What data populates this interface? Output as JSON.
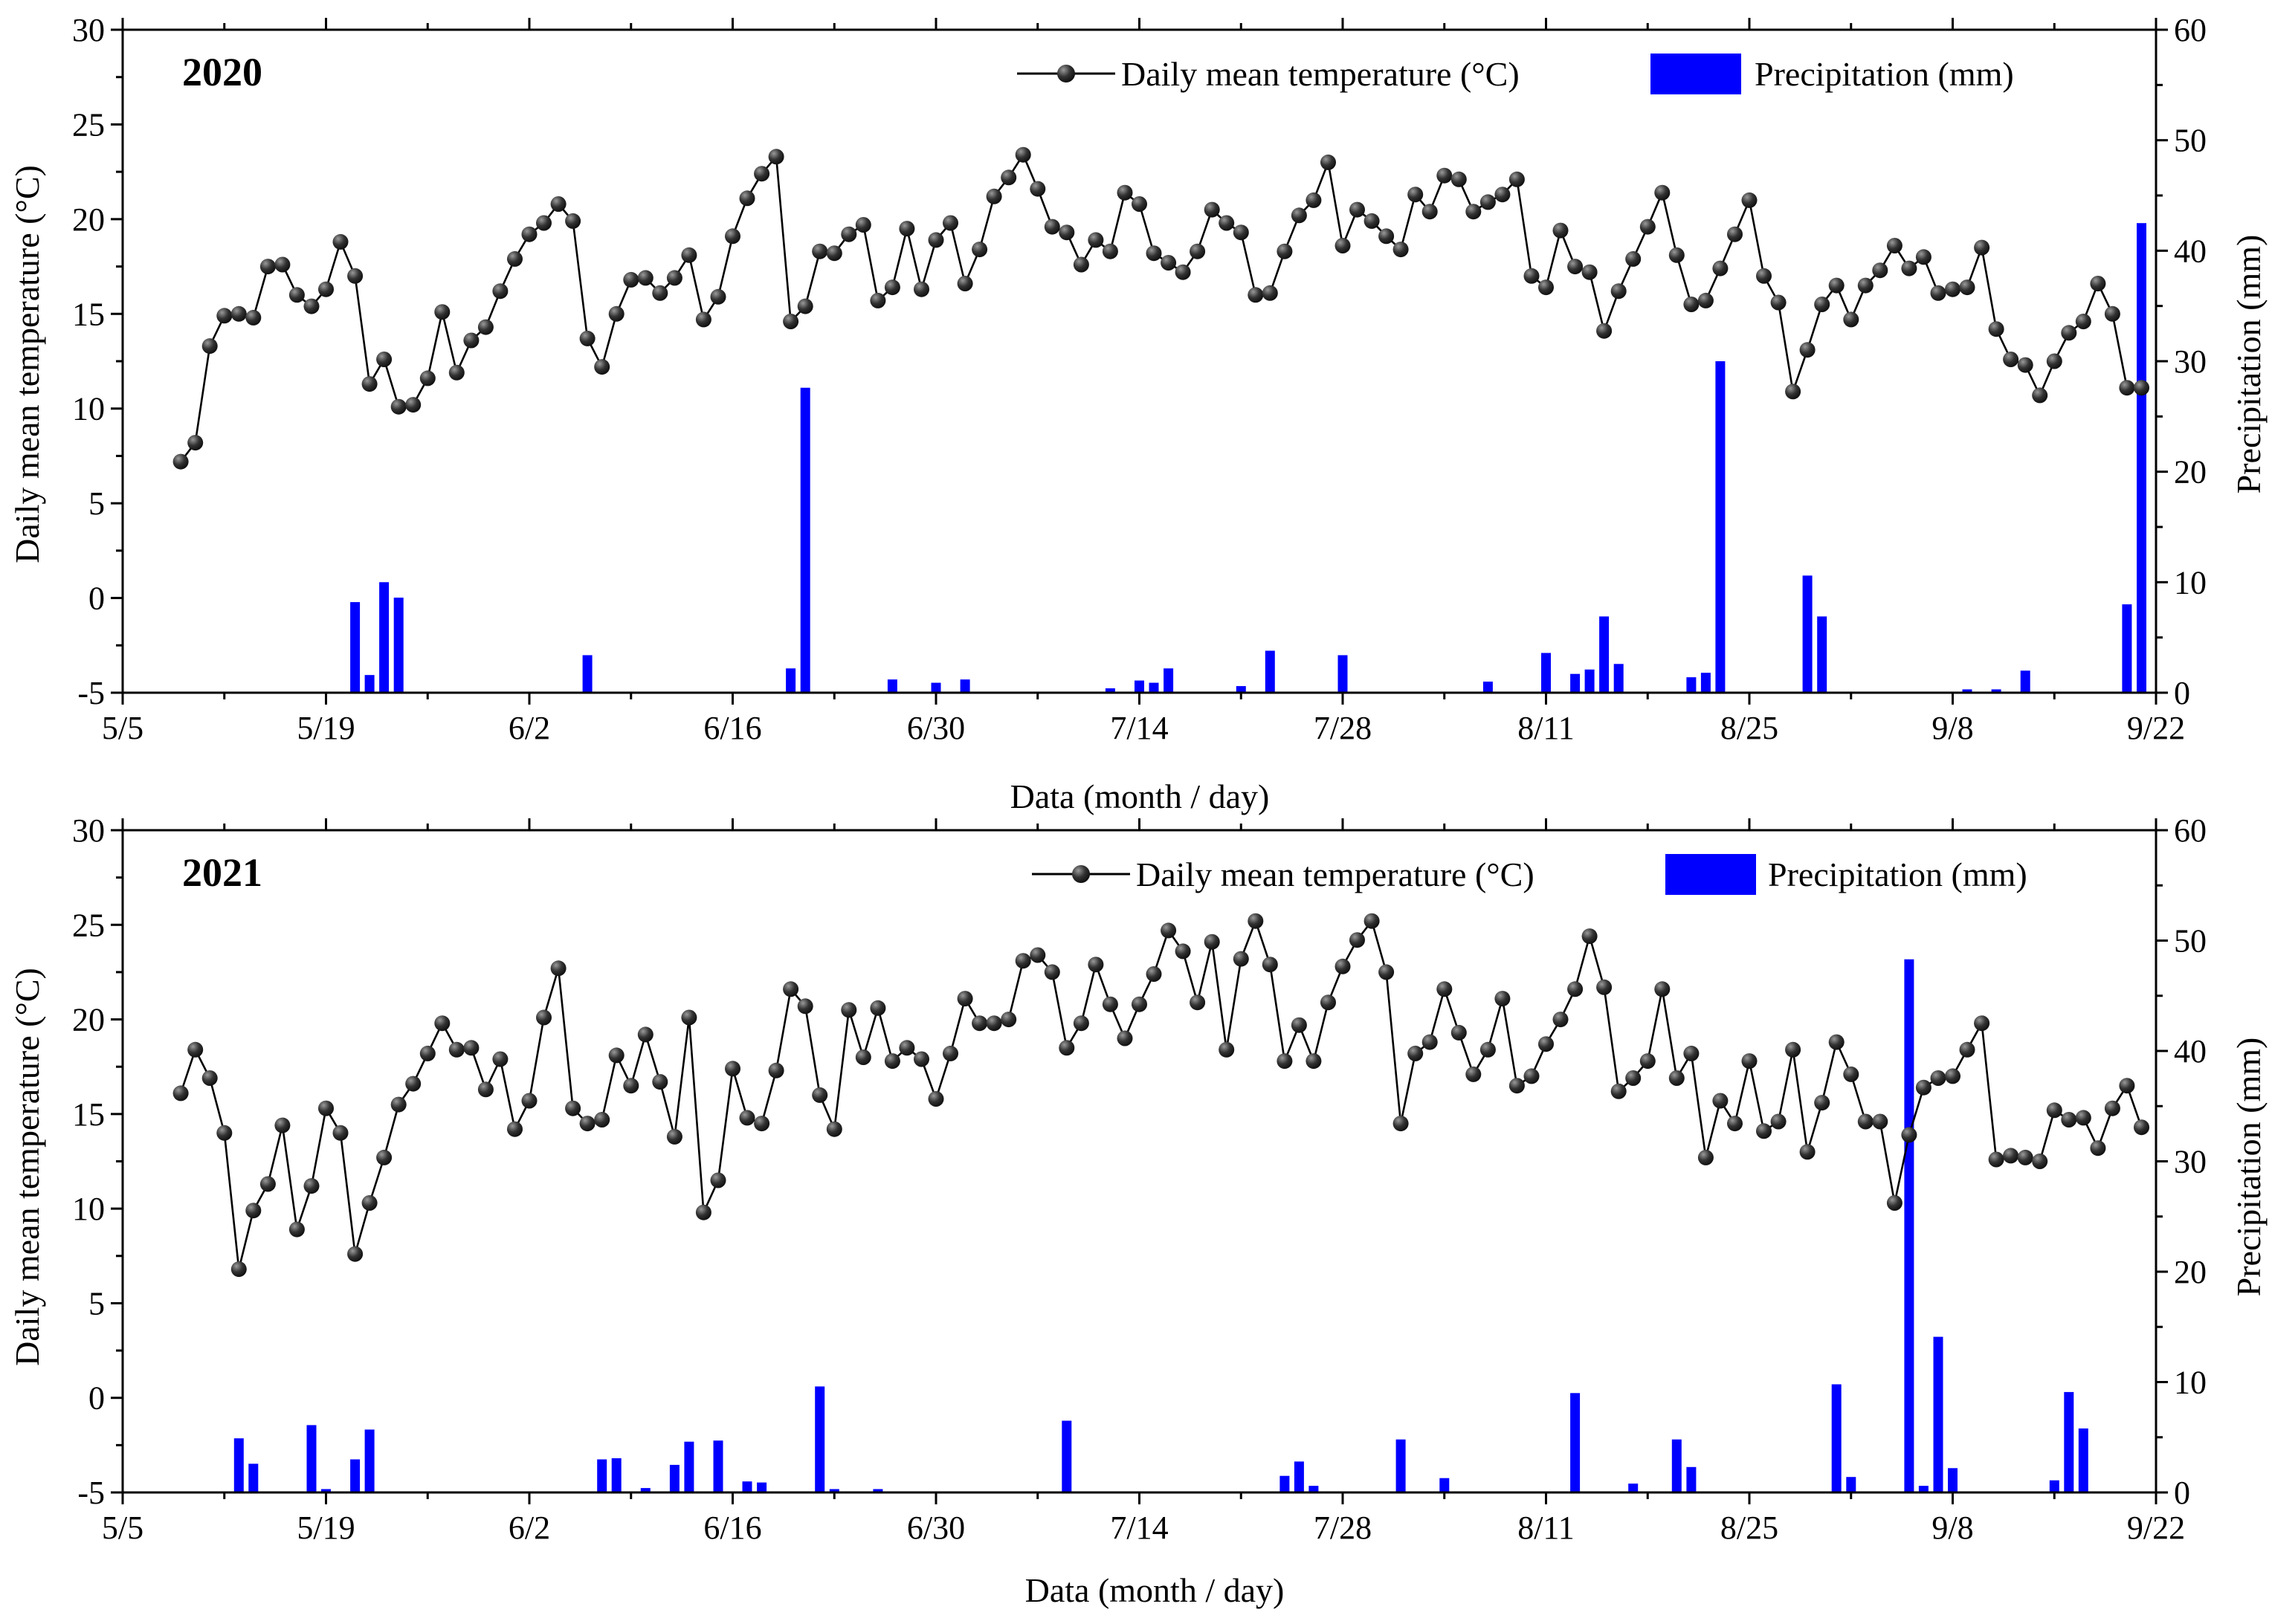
{
  "colors": {
    "precipitation": "#0000ff",
    "temperature_line": "#000000",
    "marker_light": "#9a9a9a",
    "marker_dark": "#111111"
  },
  "chart_data": [
    {
      "type": "combo-line-bar",
      "panel_label": "2020",
      "xlabel": "Data (month / day)",
      "ylabel_left": "Daily mean temperature (°C)",
      "ylabel_right": "Precipitation (mm)",
      "x_ticks": [
        "5/5",
        "5/19",
        "6/2",
        "6/16",
        "6/30",
        "7/14",
        "7/28",
        "8/11",
        "8/25",
        "9/8",
        "9/22"
      ],
      "x_start_label": "5/5",
      "x_range_days": [
        0,
        140
      ],
      "y_left_range": [
        -5,
        30
      ],
      "y_left_ticks": [
        -5,
        0,
        5,
        10,
        15,
        20,
        25,
        30
      ],
      "y_right_range": [
        0,
        60
      ],
      "y_right_ticks": [
        0,
        10,
        20,
        30,
        40,
        50,
        60
      ],
      "legend": {
        "temperature": "Daily mean temperature (°C)",
        "precipitation": "Precipitation (mm)"
      },
      "temperature": {
        "start_day": 4,
        "values": [
          7.2,
          8.2,
          13.3,
          14.9,
          15.0,
          14.8,
          17.5,
          17.6,
          16.0,
          15.4,
          16.3,
          18.8,
          17.0,
          11.3,
          12.6,
          10.1,
          10.2,
          11.6,
          15.1,
          11.9,
          13.6,
          14.3,
          16.2,
          17.9,
          19.2,
          19.8,
          20.8,
          19.9,
          13.7,
          12.2,
          15.0,
          16.8,
          16.9,
          16.1,
          16.9,
          18.1,
          14.7,
          15.9,
          19.1,
          21.1,
          22.4,
          23.3,
          14.6,
          15.4,
          18.3,
          18.2,
          19.2,
          19.7,
          15.7,
          16.4,
          19.5,
          16.3,
          18.9,
          19.8,
          16.6,
          18.4,
          21.2,
          22.2,
          23.4,
          21.6,
          19.6,
          19.3,
          17.6,
          18.9,
          18.3,
          21.4,
          20.8,
          18.2,
          17.7,
          17.2,
          18.3,
          20.5,
          19.8,
          19.3,
          16.0,
          16.1,
          18.3,
          20.2,
          21.0,
          23.0,
          18.6,
          20.5,
          19.9,
          19.1,
          18.4,
          21.3,
          20.4,
          22.3,
          22.1,
          20.4,
          20.9,
          21.3,
          22.1,
          17.0,
          16.4,
          19.4,
          17.5,
          17.2,
          14.1,
          16.2,
          17.9,
          19.6,
          21.4,
          18.1,
          15.5,
          15.7,
          17.4,
          19.2,
          21.0,
          17.0,
          15.6,
          10.9,
          13.1,
          15.5,
          16.5,
          14.7,
          16.5,
          17.3,
          18.6,
          17.4,
          18.0,
          16.1,
          16.3,
          16.4,
          18.5,
          14.2,
          12.6,
          12.3,
          10.7,
          12.5,
          14.0,
          14.6,
          16.6,
          15.0,
          11.1,
          11.1
        ]
      },
      "precipitation": [
        {
          "day": 16,
          "mm": 8.2
        },
        {
          "day": 17,
          "mm": 1.6
        },
        {
          "day": 18,
          "mm": 10.0
        },
        {
          "day": 19,
          "mm": 8.6
        },
        {
          "day": 32,
          "mm": 3.4
        },
        {
          "day": 46,
          "mm": 2.2
        },
        {
          "day": 47,
          "mm": 27.6
        },
        {
          "day": 53,
          "mm": 1.2
        },
        {
          "day": 56,
          "mm": 0.9
        },
        {
          "day": 58,
          "mm": 1.2
        },
        {
          "day": 68,
          "mm": 0.4
        },
        {
          "day": 70,
          "mm": 1.1
        },
        {
          "day": 71,
          "mm": 0.9
        },
        {
          "day": 72,
          "mm": 2.2
        },
        {
          "day": 77,
          "mm": 0.6
        },
        {
          "day": 79,
          "mm": 3.8
        },
        {
          "day": 84,
          "mm": 3.4
        },
        {
          "day": 94,
          "mm": 1.0
        },
        {
          "day": 98,
          "mm": 3.6
        },
        {
          "day": 100,
          "mm": 1.7
        },
        {
          "day": 101,
          "mm": 2.1
        },
        {
          "day": 102,
          "mm": 6.9
        },
        {
          "day": 103,
          "mm": 2.6
        },
        {
          "day": 108,
          "mm": 1.4
        },
        {
          "day": 109,
          "mm": 1.8
        },
        {
          "day": 110,
          "mm": 30.0
        },
        {
          "day": 116,
          "mm": 10.6
        },
        {
          "day": 117,
          "mm": 6.9
        },
        {
          "day": 127,
          "mm": 0.3
        },
        {
          "day": 129,
          "mm": 0.3
        },
        {
          "day": 131,
          "mm": 2.0
        },
        {
          "day": 138,
          "mm": 8.0
        },
        {
          "day": 139,
          "mm": 42.5
        }
      ]
    },
    {
      "type": "combo-line-bar",
      "panel_label": "2021",
      "xlabel": "Data (month / day)",
      "ylabel_left": "Daily mean temperature (°C)",
      "ylabel_right": "Precipitation (mm)",
      "x_ticks": [
        "5/5",
        "5/19",
        "6/2",
        "6/16",
        "6/30",
        "7/14",
        "7/28",
        "8/11",
        "8/25",
        "9/8",
        "9/22"
      ],
      "x_start_label": "5/5",
      "x_range_days": [
        0,
        140
      ],
      "y_left_range": [
        -5,
        30
      ],
      "y_left_ticks": [
        -5,
        0,
        5,
        10,
        15,
        20,
        25,
        30
      ],
      "y_right_range": [
        0,
        60
      ],
      "y_right_ticks": [
        0,
        10,
        20,
        30,
        40,
        50,
        60
      ],
      "legend": {
        "temperature": "Daily mean temperature (°C)",
        "precipitation": "Precipitation (mm)"
      },
      "temperature": {
        "start_day": 4,
        "values": [
          16.1,
          18.4,
          16.9,
          14.0,
          6.8,
          9.9,
          11.3,
          14.4,
          8.9,
          11.2,
          15.3,
          14.0,
          7.6,
          10.3,
          12.7,
          15.5,
          16.6,
          18.2,
          19.8,
          18.4,
          18.5,
          16.3,
          17.9,
          14.2,
          15.7,
          20.1,
          22.7,
          15.3,
          14.5,
          14.7,
          18.1,
          16.5,
          19.2,
          16.7,
          13.8,
          20.1,
          9.8,
          11.5,
          17.4,
          14.8,
          14.5,
          17.3,
          21.6,
          20.7,
          16.0,
          14.2,
          20.5,
          18.0,
          20.6,
          17.8,
          18.5,
          17.9,
          15.8,
          18.2,
          21.1,
          19.8,
          19.8,
          20.0,
          23.1,
          23.4,
          22.5,
          18.5,
          19.8,
          22.9,
          20.8,
          19.0,
          20.8,
          22.4,
          24.7,
          23.6,
          20.9,
          24.1,
          18.4,
          23.2,
          25.2,
          22.9,
          17.8,
          19.7,
          17.8,
          20.9,
          22.8,
          24.2,
          25.2,
          22.5,
          14.5,
          18.2,
          18.8,
          21.6,
          19.3,
          17.1,
          18.4,
          21.1,
          16.5,
          17.0,
          18.7,
          20.0,
          21.6,
          24.4,
          21.7,
          16.2,
          16.9,
          17.8,
          21.6,
          16.9,
          18.2,
          12.7,
          15.7,
          14.5,
          17.8,
          14.1,
          14.6,
          18.4,
          13.0,
          15.6,
          18.8,
          17.1,
          14.6,
          14.6,
          10.3,
          13.9,
          16.4,
          16.9,
          17.0,
          18.4,
          19.8,
          12.6,
          12.8,
          12.7,
          12.5,
          15.2,
          14.7,
          14.8,
          13.2,
          15.3,
          16.5,
          14.3
        ]
      },
      "precipitation": [
        {
          "day": 8,
          "mm": 4.9
        },
        {
          "day": 9,
          "mm": 2.6
        },
        {
          "day": 13,
          "mm": 6.1
        },
        {
          "day": 14,
          "mm": 0.3
        },
        {
          "day": 16,
          "mm": 3.0
        },
        {
          "day": 17,
          "mm": 5.7
        },
        {
          "day": 33,
          "mm": 3.0
        },
        {
          "day": 34,
          "mm": 3.1
        },
        {
          "day": 36,
          "mm": 0.4
        },
        {
          "day": 38,
          "mm": 2.5
        },
        {
          "day": 39,
          "mm": 4.6
        },
        {
          "day": 41,
          "mm": 4.7
        },
        {
          "day": 43,
          "mm": 1.0
        },
        {
          "day": 44,
          "mm": 0.9
        },
        {
          "day": 48,
          "mm": 9.6
        },
        {
          "day": 49,
          "mm": 0.3
        },
        {
          "day": 52,
          "mm": 0.3
        },
        {
          "day": 65,
          "mm": 6.5
        },
        {
          "day": 80,
          "mm": 1.5
        },
        {
          "day": 81,
          "mm": 2.8
        },
        {
          "day": 82,
          "mm": 0.6
        },
        {
          "day": 88,
          "mm": 4.8
        },
        {
          "day": 91,
          "mm": 1.3
        },
        {
          "day": 100,
          "mm": 9.0
        },
        {
          "day": 104,
          "mm": 0.8
        },
        {
          "day": 107,
          "mm": 4.8
        },
        {
          "day": 108,
          "mm": 2.3
        },
        {
          "day": 118,
          "mm": 9.8
        },
        {
          "day": 119,
          "mm": 1.4
        },
        {
          "day": 123,
          "mm": 48.3
        },
        {
          "day": 124,
          "mm": 0.6
        },
        {
          "day": 125,
          "mm": 14.1
        },
        {
          "day": 126,
          "mm": 2.2
        },
        {
          "day": 133,
          "mm": 1.1
        },
        {
          "day": 134,
          "mm": 9.1
        },
        {
          "day": 135,
          "mm": 5.8
        }
      ]
    }
  ]
}
